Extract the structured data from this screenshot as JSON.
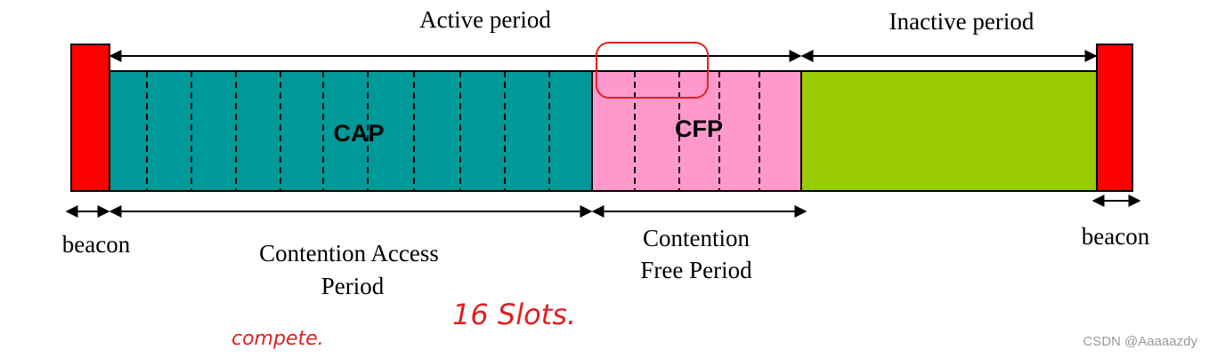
{
  "timeline": {
    "active_label": "Active period",
    "inactive_label": "Inactive period",
    "segments": [
      {
        "label": "CAP"
      },
      {
        "label": "CFP"
      }
    ],
    "below": {
      "beacon_left": "beacon",
      "cap_lines": [
        "Contention Access",
        "Period"
      ],
      "cfp_lines": [
        "Contention",
        "Free Period"
      ],
      "beacon_right": "beacon"
    }
  },
  "annotations": [
    "16 Slots.",
    "compete."
  ],
  "watermark": "CSDN @Aaaaazdy"
}
